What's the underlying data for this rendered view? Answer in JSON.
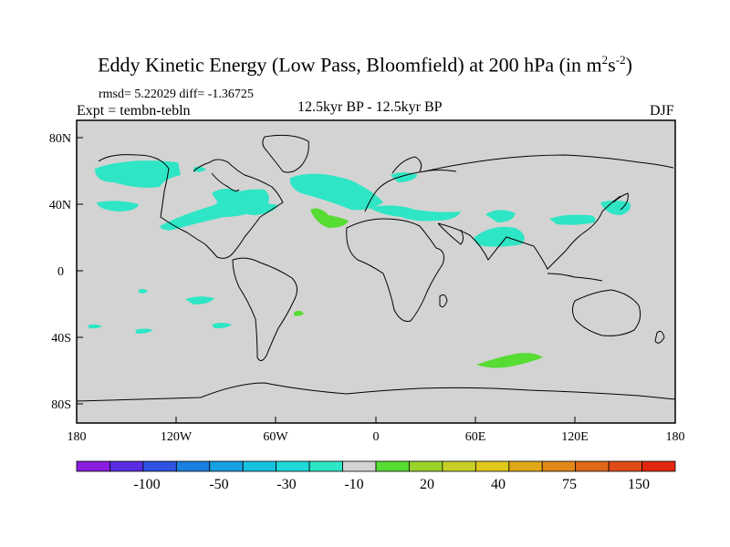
{
  "title": {
    "main": "Eddy Kinetic Energy (Low Pass, Bloomfield) at 200 hPa (in m",
    "sup1": "2",
    "mid": "s",
    "sup2": "-2",
    "end": ")"
  },
  "stats": "rmsd= 5.22029 diff= -1.36725",
  "expt": "Expt = tembn-tebln",
  "period": "12.5kyr BP - 12.5kyr BP",
  "season": "DJF",
  "colors": {
    "land_bg": "#d3d3d3",
    "cyan": "#2ee6c5",
    "cyan_light": "#49dbc9",
    "green": "#56dc32",
    "teal_dark": "#1fc8c0"
  },
  "axes": {
    "lat_labels": [
      "80N",
      "40N",
      "0",
      "40S",
      "80S"
    ],
    "lon_labels": [
      "180",
      "120W",
      "60W",
      "0",
      "60E",
      "120E",
      "180"
    ]
  },
  "colorbar": {
    "colors": [
      "#8a1de0",
      "#5a2de0",
      "#2f52e0",
      "#1a80e0",
      "#16a0e0",
      "#18c0e0",
      "#20d8d8",
      "#2ee6c5",
      "#d3d3d3",
      "#56dc32",
      "#9ad22a",
      "#c8d028",
      "#e0c81c",
      "#e0a818",
      "#e08818",
      "#e06818",
      "#e04a14",
      "#e02810"
    ],
    "labels": [
      "-100",
      "-50",
      "-30",
      "-10",
      "20",
      "40",
      "75",
      "150"
    ]
  }
}
